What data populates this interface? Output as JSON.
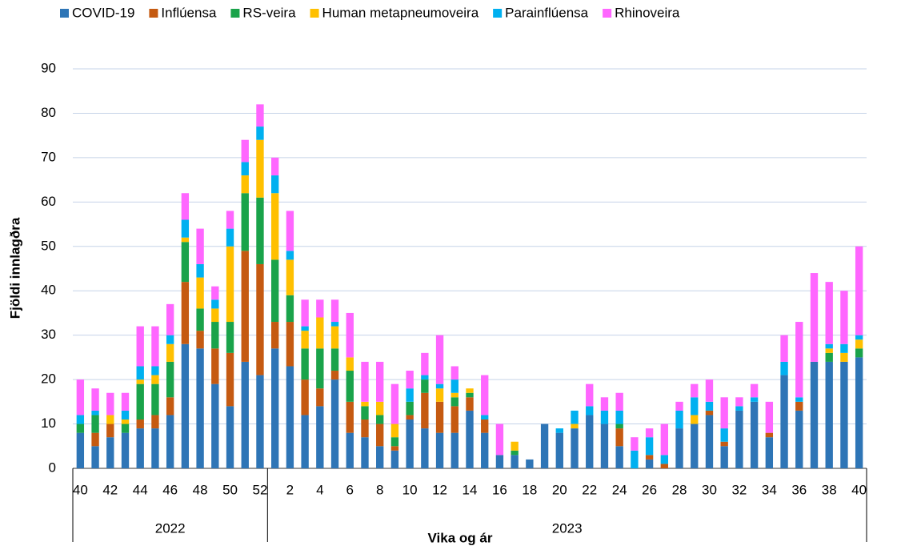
{
  "chart_data": {
    "type": "stacked_bar",
    "y_label": "Fjöldi innlagðra",
    "x_label": "Vika og ár",
    "categories": [
      "40",
      null,
      "42",
      null,
      "44",
      null,
      "46",
      null,
      "48",
      null,
      "50",
      null,
      "52",
      null,
      "2",
      null,
      "4",
      null,
      "6",
      null,
      "8",
      null,
      "10",
      null,
      "12",
      null,
      "14",
      null,
      "16",
      null,
      "18",
      null,
      "20",
      null,
      "22",
      null,
      "24",
      null,
      "26",
      null,
      "28",
      null,
      "30",
      null,
      "32",
      null,
      "34",
      null,
      "36",
      null,
      "38",
      null,
      "40"
    ],
    "category_groups": [
      {
        "label": "2022",
        "count": 13
      },
      {
        "label": "2023",
        "count": 40
      }
    ],
    "series": [
      {
        "name": "COVID-19",
        "color": "#2e75b6",
        "values": [
          8,
          5,
          7,
          8,
          9,
          9,
          12,
          28,
          27,
          19,
          14,
          24,
          21,
          27,
          23,
          12,
          14,
          20,
          8,
          7,
          5,
          4,
          11,
          9,
          8,
          8,
          13,
          8,
          3,
          3,
          2,
          10,
          8,
          9,
          12,
          10,
          5,
          0,
          2,
          0,
          9,
          10,
          12,
          5,
          13,
          15,
          7,
          21,
          13,
          24,
          24,
          24,
          25
        ]
      },
      {
        "name": "Inflúensa",
        "color": "#c55a11",
        "values": [
          0,
          3,
          3,
          0,
          2,
          3,
          4,
          14,
          4,
          8,
          12,
          25,
          25,
          6,
          10,
          8,
          4,
          2,
          7,
          4,
          5,
          1,
          1,
          8,
          7,
          6,
          3,
          3,
          0,
          0,
          0,
          0,
          0,
          0,
          0,
          0,
          4,
          0,
          1,
          1,
          0,
          0,
          1,
          1,
          0,
          0,
          1,
          0,
          2,
          0,
          0,
          0,
          0
        ]
      },
      {
        "name": "RS-veira",
        "color": "#1aa34a",
        "values": [
          2,
          4,
          0,
          2,
          8,
          7,
          8,
          9,
          5,
          6,
          7,
          13,
          15,
          14,
          6,
          7,
          9,
          5,
          7,
          3,
          2,
          2,
          3,
          3,
          0,
          2,
          1,
          0,
          0,
          1,
          0,
          0,
          0,
          0,
          0,
          0,
          1,
          0,
          0,
          0,
          0,
          0,
          0,
          0,
          0,
          0,
          0,
          0,
          0,
          0,
          2,
          0,
          2
        ]
      },
      {
        "name": "Human metapneumoveira",
        "color": "#ffc000",
        "values": [
          0,
          0,
          2,
          1,
          1,
          2,
          4,
          1,
          7,
          3,
          17,
          4,
          13,
          15,
          8,
          4,
          7,
          5,
          3,
          1,
          3,
          3,
          0,
          0,
          3,
          1,
          1,
          0,
          0,
          2,
          0,
          0,
          0,
          1,
          0,
          0,
          0,
          0,
          0,
          0,
          0,
          2,
          0,
          0,
          0,
          0,
          0,
          0,
          0,
          0,
          1,
          2,
          2
        ]
      },
      {
        "name": "Parainflúensa",
        "color": "#00b0f0",
        "values": [
          2,
          1,
          0,
          2,
          3,
          2,
          2,
          4,
          3,
          2,
          4,
          3,
          3,
          4,
          2,
          1,
          0,
          1,
          0,
          0,
          0,
          0,
          3,
          1,
          1,
          3,
          0,
          1,
          0,
          0,
          0,
          0,
          1,
          3,
          2,
          3,
          3,
          4,
          4,
          2,
          4,
          4,
          2,
          3,
          1,
          1,
          0,
          3,
          1,
          0,
          1,
          2,
          1
        ]
      },
      {
        "name": "Rhinoveira",
        "color": "#ff66ff",
        "values": [
          8,
          5,
          5,
          4,
          9,
          9,
          7,
          6,
          8,
          3,
          4,
          5,
          5,
          4,
          9,
          6,
          4,
          5,
          10,
          9,
          9,
          9,
          4,
          5,
          11,
          3,
          0,
          9,
          7,
          0,
          0,
          0,
          0,
          0,
          5,
          3,
          4,
          3,
          2,
          7,
          2,
          3,
          5,
          7,
          2,
          3,
          7,
          6,
          17,
          20,
          14,
          12,
          20
        ]
      }
    ],
    "ylim": [
      0,
      90
    ],
    "yticks": [
      0,
      10,
      20,
      30,
      40,
      50,
      60,
      70,
      80,
      90
    ],
    "grid": true
  }
}
